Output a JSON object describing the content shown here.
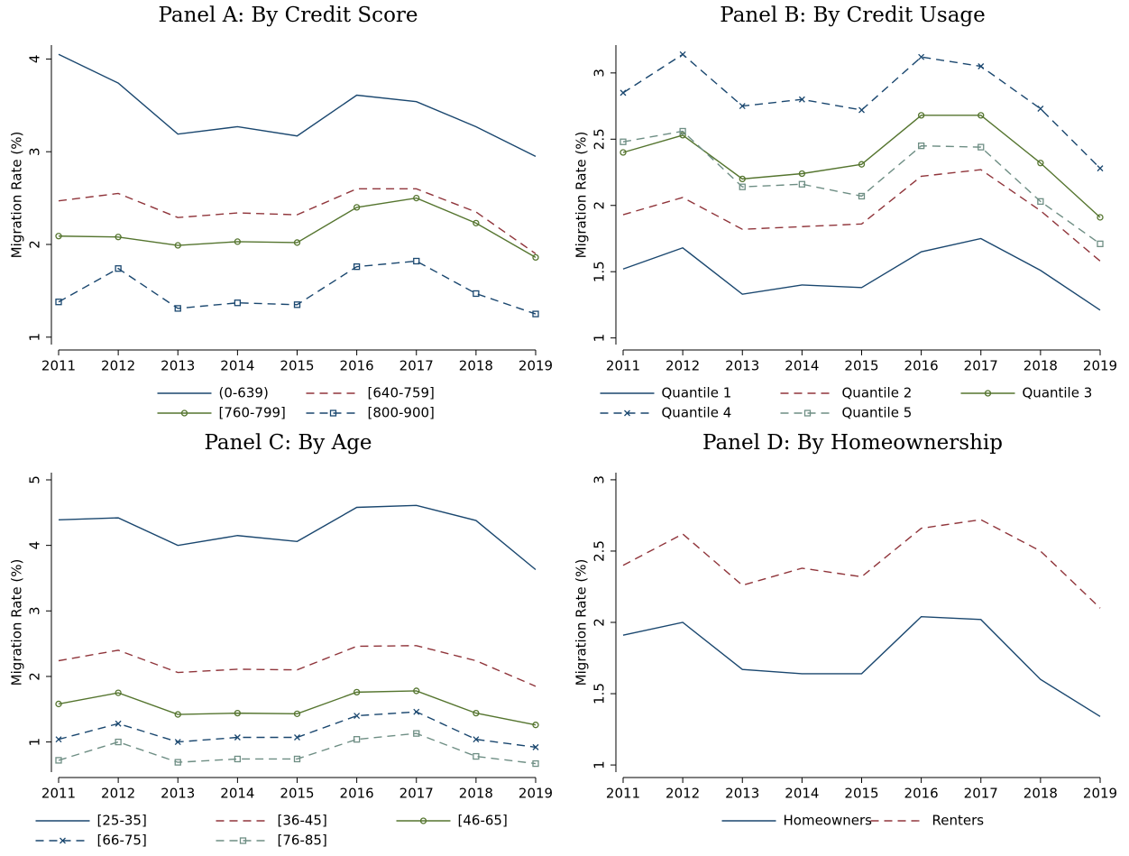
{
  "chart_data": [
    {
      "type": "line",
      "title": "Panel A: By Credit Score",
      "ylabel": "Migration Rate (%)",
      "categories": [
        "2011",
        "2012",
        "2013",
        "2014",
        "2015",
        "2016",
        "2017",
        "2018",
        "2019"
      ],
      "ylim": [
        0.92,
        4.15
      ],
      "yticks": [
        1,
        2,
        3,
        4
      ],
      "legend_columns": 2,
      "series": [
        {
          "name": "(0-639)",
          "color": "#1a476f",
          "dash": false,
          "marker": "none",
          "values": [
            4.05,
            3.74,
            3.19,
            3.27,
            3.17,
            3.61,
            3.54,
            3.27,
            2.95
          ]
        },
        {
          "name": "[640-759]",
          "color": "#90353b",
          "dash": true,
          "marker": "none",
          "values": [
            2.47,
            2.55,
            2.29,
            2.34,
            2.32,
            2.6,
            2.6,
            2.35,
            1.9
          ]
        },
        {
          "name": "[760-799]",
          "color": "#55752f",
          "dash": false,
          "marker": "circle",
          "values": [
            2.09,
            2.08,
            1.99,
            2.03,
            2.02,
            2.4,
            2.5,
            2.23,
            1.86
          ]
        },
        {
          "name": "[800-900]",
          "color": "#1a476f",
          "dash": true,
          "marker": "square",
          "values": [
            1.38,
            1.74,
            1.31,
            1.37,
            1.35,
            1.76,
            1.82,
            1.47,
            1.25
          ]
        }
      ]
    },
    {
      "type": "line",
      "title": "Panel B: By Credit Usage",
      "ylabel": "Migration Rate (%)",
      "categories": [
        "2011",
        "2012",
        "2013",
        "2014",
        "2015",
        "2016",
        "2017",
        "2018",
        "2019"
      ],
      "ylim": [
        0.95,
        3.21
      ],
      "yticks": [
        1,
        1.5,
        2,
        2.5,
        3
      ],
      "legend_columns": 3,
      "series": [
        {
          "name": "Quantile 1",
          "color": "#1a476f",
          "dash": false,
          "marker": "none",
          "values": [
            1.52,
            1.68,
            1.33,
            1.4,
            1.38,
            1.65,
            1.75,
            1.51,
            1.21
          ]
        },
        {
          "name": "Quantile 2",
          "color": "#90353b",
          "dash": true,
          "marker": "none",
          "values": [
            1.93,
            2.06,
            1.82,
            1.84,
            1.86,
            2.22,
            2.27,
            1.96,
            1.58
          ]
        },
        {
          "name": "Quantile 3",
          "color": "#55752f",
          "dash": false,
          "marker": "circle",
          "values": [
            2.4,
            2.53,
            2.2,
            2.24,
            2.31,
            2.68,
            2.68,
            2.32,
            1.91
          ]
        },
        {
          "name": "Quantile 4",
          "color": "#1a476f",
          "dash": true,
          "marker": "x",
          "values": [
            2.85,
            3.14,
            2.75,
            2.8,
            2.72,
            3.12,
            3.05,
            2.73,
            2.28
          ]
        },
        {
          "name": "Quantile 5",
          "color": "#6e8e84",
          "dash": true,
          "marker": "square",
          "values": [
            2.48,
            2.56,
            2.14,
            2.16,
            2.07,
            2.45,
            2.44,
            2.03,
            1.71
          ]
        }
      ]
    },
    {
      "type": "line",
      "title": "Panel C: By Age",
      "ylabel": "Migration Rate (%)",
      "categories": [
        "2011",
        "2012",
        "2013",
        "2014",
        "2015",
        "2016",
        "2017",
        "2018",
        "2019"
      ],
      "ylim": [
        0.54,
        5.11
      ],
      "yticks": [
        1,
        2,
        3,
        4,
        5
      ],
      "legend_columns": 3,
      "series": [
        {
          "name": "[25-35]",
          "color": "#1a476f",
          "dash": false,
          "marker": "none",
          "values": [
            4.39,
            4.42,
            4.0,
            4.15,
            4.06,
            4.58,
            4.61,
            4.38,
            3.63
          ]
        },
        {
          "name": "[36-45]",
          "color": "#90353b",
          "dash": true,
          "marker": "none",
          "values": [
            2.24,
            2.4,
            2.06,
            2.11,
            2.1,
            2.46,
            2.47,
            2.24,
            1.85
          ]
        },
        {
          "name": "[46-65]",
          "color": "#55752f",
          "dash": false,
          "marker": "circle",
          "values": [
            1.58,
            1.75,
            1.42,
            1.44,
            1.43,
            1.76,
            1.78,
            1.44,
            1.26
          ]
        },
        {
          "name": "[66-75]",
          "color": "#1a476f",
          "dash": true,
          "marker": "x",
          "values": [
            1.04,
            1.28,
            1.0,
            1.07,
            1.07,
            1.4,
            1.46,
            1.04,
            0.92
          ]
        },
        {
          "name": "[76-85]",
          "color": "#6e8e84",
          "dash": true,
          "marker": "square",
          "values": [
            0.72,
            1.0,
            0.69,
            0.74,
            0.74,
            1.04,
            1.13,
            0.78,
            0.67
          ]
        }
      ]
    },
    {
      "type": "line",
      "title": "Panel D: By Homeownership",
      "ylabel": "Migration Rate (%)",
      "categories": [
        "2011",
        "2012",
        "2013",
        "2014",
        "2015",
        "2016",
        "2017",
        "2018",
        "2019"
      ],
      "ylim": [
        0.95,
        3.05
      ],
      "yticks": [
        1,
        1.5,
        2,
        2.5,
        3
      ],
      "legend_columns": 2,
      "series": [
        {
          "name": "Homeowners",
          "color": "#1a476f",
          "dash": false,
          "marker": "none",
          "values": [
            1.91,
            2.0,
            1.67,
            1.64,
            1.64,
            2.04,
            2.02,
            1.6,
            1.34
          ]
        },
        {
          "name": "Renters",
          "color": "#90353b",
          "dash": true,
          "marker": "none",
          "values": [
            2.4,
            2.62,
            2.26,
            2.38,
            2.32,
            2.66,
            2.72,
            2.5,
            2.1
          ]
        }
      ]
    }
  ]
}
